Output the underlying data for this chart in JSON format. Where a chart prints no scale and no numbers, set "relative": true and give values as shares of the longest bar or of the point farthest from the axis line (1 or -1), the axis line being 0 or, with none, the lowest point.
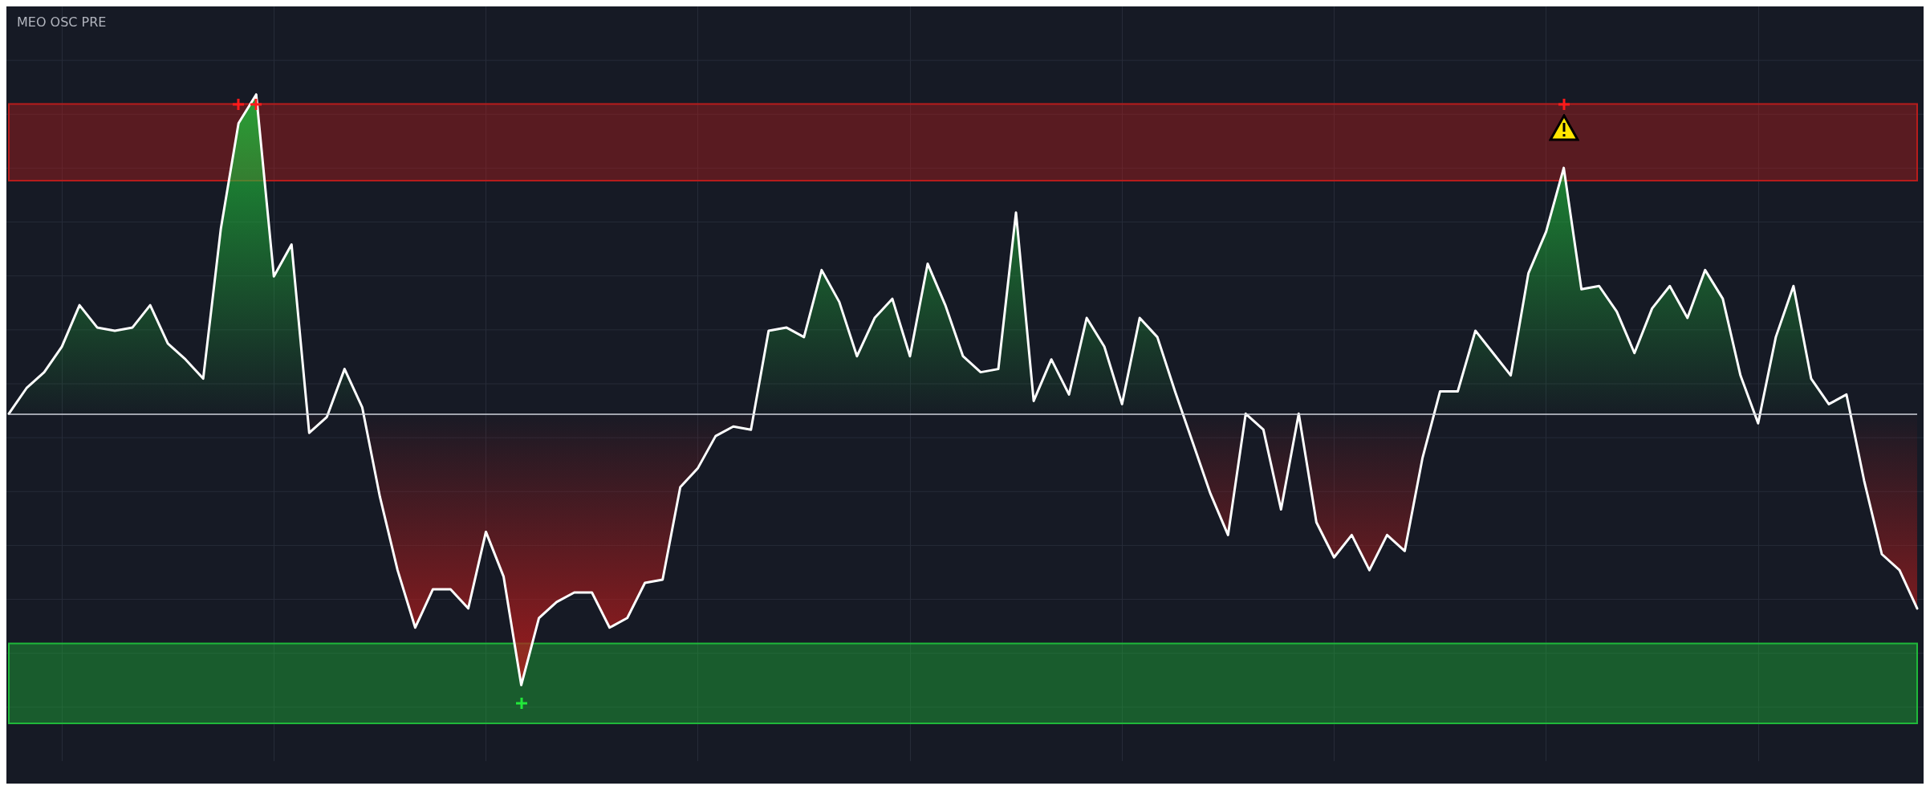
{
  "chart_data": {
    "type": "area",
    "title": "MEO OSC PRE",
    "relative": true,
    "grid": true,
    "marker": "none",
    "categories": [
      null,
      null,
      null,
      null,
      null,
      null,
      null,
      null,
      null,
      null,
      null,
      null,
      null,
      null,
      null,
      null,
      null,
      null,
      null,
      null,
      null,
      null,
      null,
      null,
      null,
      null,
      null,
      null,
      null,
      null,
      null,
      null,
      null,
      null,
      null,
      null,
      null,
      null,
      null,
      null,
      null,
      null,
      null,
      null,
      null,
      null,
      null,
      null,
      null,
      null,
      null,
      null,
      null,
      null,
      null,
      null,
      null,
      null,
      null,
      null,
      null,
      null,
      null,
      null,
      null,
      null,
      null,
      null,
      null,
      null,
      null,
      null,
      null,
      null,
      null,
      null,
      null,
      null,
      null,
      null,
      null,
      null,
      null,
      null,
      null,
      null,
      null,
      null,
      null,
      null,
      null,
      null,
      null,
      null,
      null,
      null,
      null,
      null,
      null,
      null,
      null,
      null,
      null,
      null,
      null,
      null,
      null,
      null,
      null
    ],
    "series": [
      {
        "color": "#ffffff",
        "values": [
          0,
          0.08,
          0.13,
          0.21,
          0.34,
          0.27,
          0.26,
          0.27,
          0.34,
          0.22,
          0.17,
          0.11,
          0.58,
          0.91,
          1,
          0.43,
          0.53,
          -0.06,
          -0.01,
          0.14,
          0.02,
          -0.26,
          -0.49,
          -0.67,
          -0.55,
          -0.55,
          -0.61,
          -0.37,
          -0.51,
          -0.85,
          -0.64,
          -0.59,
          -0.56,
          -0.56,
          -0.67,
          -0.64,
          -0.53,
          -0.52,
          -0.23,
          -0.17,
          -0.07,
          -0.04,
          -0.05,
          0.26,
          0.27,
          0.24,
          0.45,
          0.35,
          0.18,
          0.3,
          0.36,
          0.18,
          0.47,
          0.34,
          0.18,
          0.13,
          0.14,
          0.63,
          0.04,
          0.17,
          0.06,
          0.3,
          0.21,
          0.03,
          0.3,
          0.24,
          0.07,
          -0.09,
          -0.25,
          -0.38,
          0,
          -0.05,
          -0.3,
          0,
          -0.34,
          -0.45,
          -0.38,
          -0.49,
          -0.38,
          -0.43,
          -0.14,
          0.07,
          0.07,
          0.26,
          0.19,
          0.12,
          0.44,
          0.57,
          0.77,
          0.39,
          0.4,
          0.32,
          0.19,
          0.33,
          0.4,
          0.3,
          0.45,
          0.36,
          0.12,
          -0.03,
          0.24,
          0.4,
          0.11,
          0.03,
          0.06,
          -0.21,
          -0.44,
          -0.49,
          -0.61
        ]
      }
    ],
    "ref_lines": [
      {
        "axis": "y",
        "value": 0,
        "color": "#d1d4dc"
      }
    ],
    "bands": [
      {
        "axis": "y",
        "from": 0.73,
        "to": 0.97,
        "color": "#b71c1c"
      },
      {
        "axis": "y",
        "from": -0.97,
        "to": -0.72,
        "color": "#1fb83a"
      }
    ]
  }
}
